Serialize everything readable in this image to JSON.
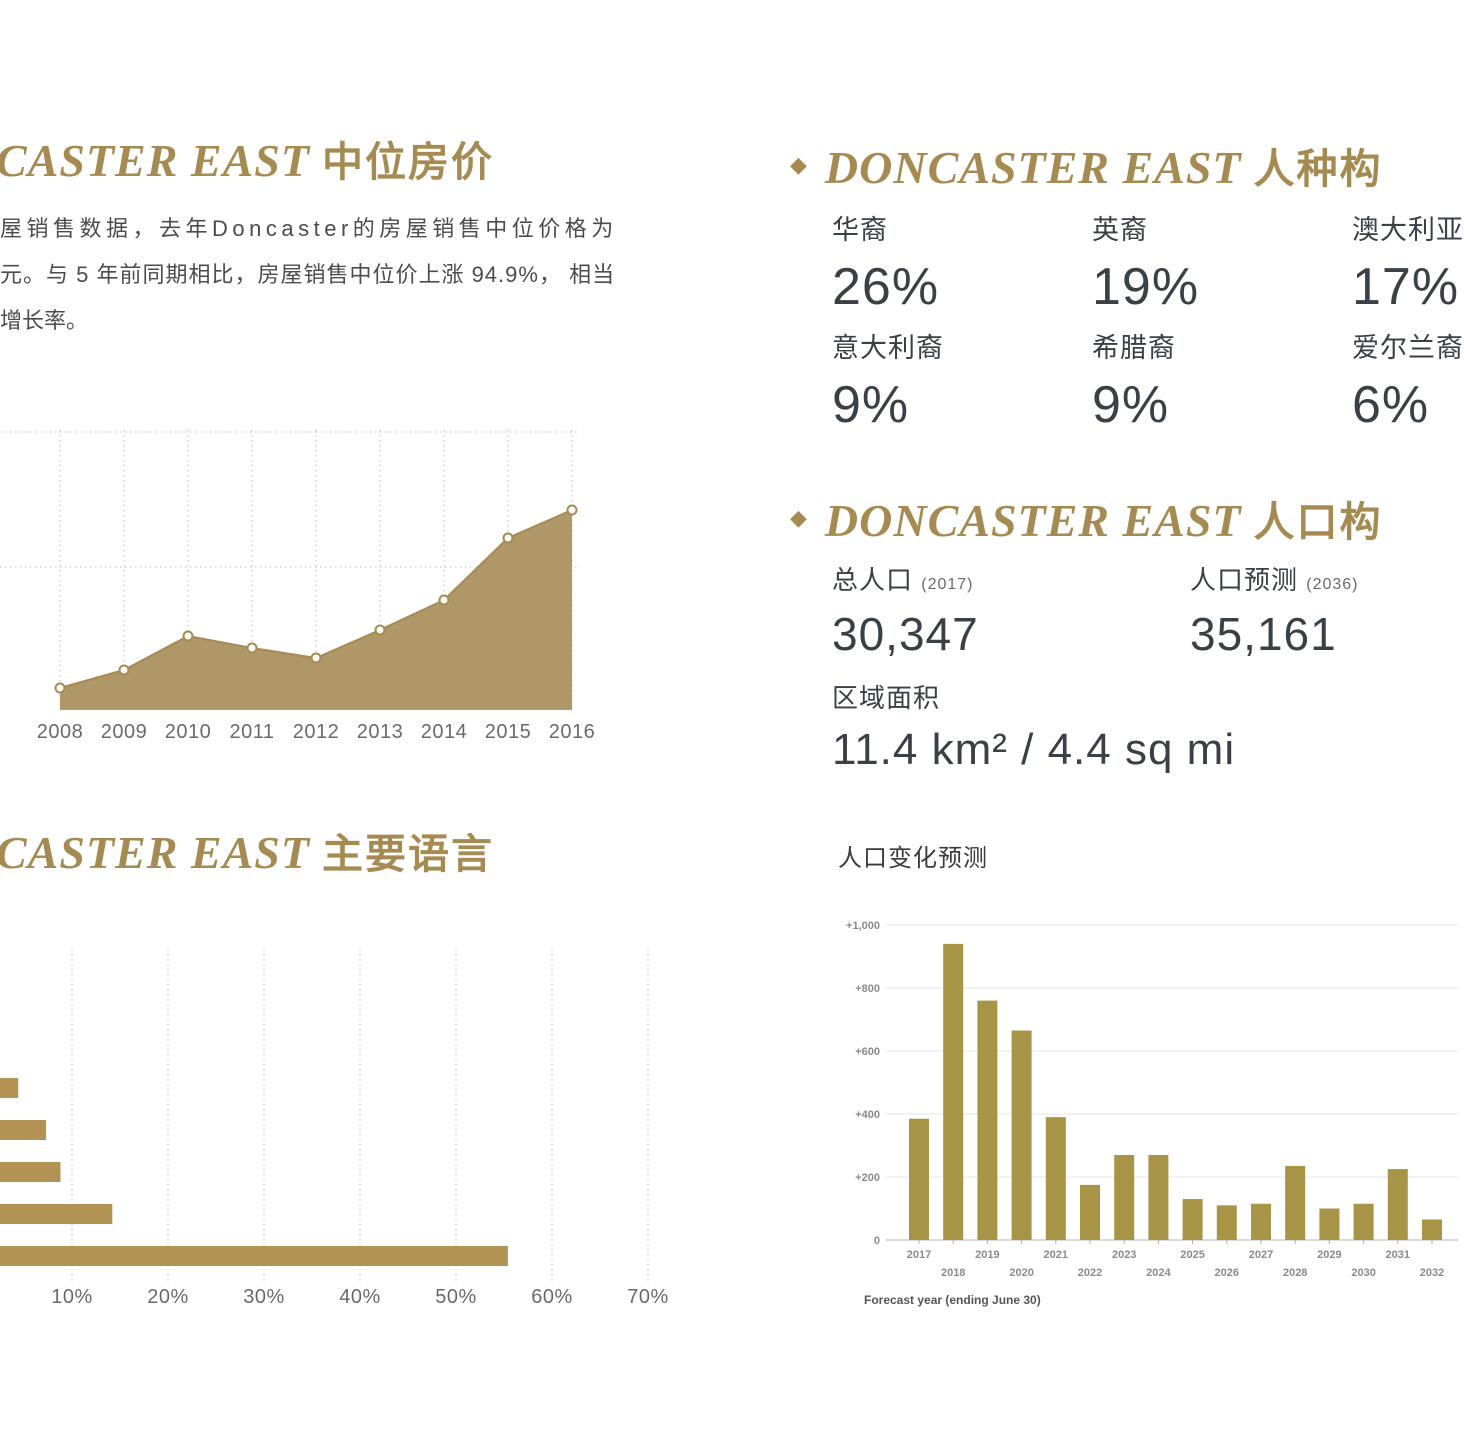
{
  "colors": {
    "gold_title": "#a58b52",
    "area_fill": "#b09768",
    "area_line": "#a58b52",
    "bar_gold": "#b29354",
    "forecast_gold": "#a79447",
    "text_dark": "#3b4046"
  },
  "sections": {
    "median_price": {
      "title_en": "CASTER EAST",
      "title_zh": "中位房价",
      "para": [
        "屋销售数据，去年Doncaster的房屋销售中位价格为",
        "元。与 5 年前同期相比，房屋销售中位价上涨 94.9%， 相当",
        "增长率。"
      ]
    },
    "languages": {
      "title_en": "CASTER EAST",
      "title_zh": "主要语言"
    },
    "ethnicity": {
      "bullet": "◆",
      "title_en": "DONCASTER EAST",
      "title_zh": "人种构",
      "stats": [
        {
          "label": "华裔",
          "value": "26%"
        },
        {
          "label": "英裔",
          "value": "19%"
        },
        {
          "label": "澳大利亚",
          "value": "17%"
        },
        {
          "label": "意大利裔",
          "value": "9%"
        },
        {
          "label": "希腊裔",
          "value": "9%"
        },
        {
          "label": "爱尔兰裔",
          "value": "6%"
        }
      ]
    },
    "population": {
      "bullet": "◆",
      "title_en": "DONCASTER EAST",
      "title_zh": "人口构",
      "total_label": "总人口",
      "total_year": "(2017)",
      "total_value": "30,347",
      "forecast_label": "人口预测",
      "forecast_year": "(2036)",
      "forecast_value": "35,161",
      "area_label": "区域面积",
      "area_value": "11.4 km² / 4.4 sq mi",
      "chart_label": "人口变化预测"
    }
  },
  "chart_data": [
    {
      "id": "median_price_area",
      "type": "area",
      "title": "",
      "x_labels": [
        "2008",
        "2009",
        "2010",
        "2011",
        "2012",
        "2013",
        "2014",
        "2015",
        "2016"
      ],
      "values_relative": [
        0.11,
        0.2,
        0.37,
        0.31,
        0.26,
        0.4,
        0.55,
        0.86,
        1.0
      ],
      "xlabel": "",
      "ylabel": "",
      "y_axis_visible": false,
      "grid": "dotted-vertical-per-year"
    },
    {
      "id": "languages_bar",
      "type": "bar",
      "orientation": "horizontal",
      "categories": [
        "",
        "",
        "",
        "",
        ""
      ],
      "values_pct": [
        4.4,
        7.3,
        8.8,
        14.2,
        55.4
      ],
      "x_tick_labels": [
        "10%",
        "20%",
        "30%",
        "40%",
        "50%",
        "60%",
        "70%"
      ],
      "xlim": [
        0,
        75
      ],
      "grid": "dotted-vertical",
      "note_axis": "category labels cut off at left edge of page"
    },
    {
      "id": "population_forecast",
      "type": "bar",
      "categories": [
        "2017",
        "2018",
        "2019",
        "2020",
        "2021",
        "2022",
        "2023",
        "2024",
        "2025",
        "2026",
        "2027",
        "2028",
        "2029",
        "2030",
        "2031",
        "2032"
      ],
      "values": [
        385,
        940,
        760,
        665,
        390,
        175,
        270,
        270,
        130,
        110,
        115,
        235,
        100,
        115,
        225,
        65
      ],
      "y_tick_labels": [
        "0",
        "+200",
        "+400",
        "+600",
        "+800",
        "+1,000"
      ],
      "ylim": [
        0,
        1050
      ],
      "xlabel": "Forecast year (ending June 30)",
      "grid": "horizontal-light"
    }
  ]
}
